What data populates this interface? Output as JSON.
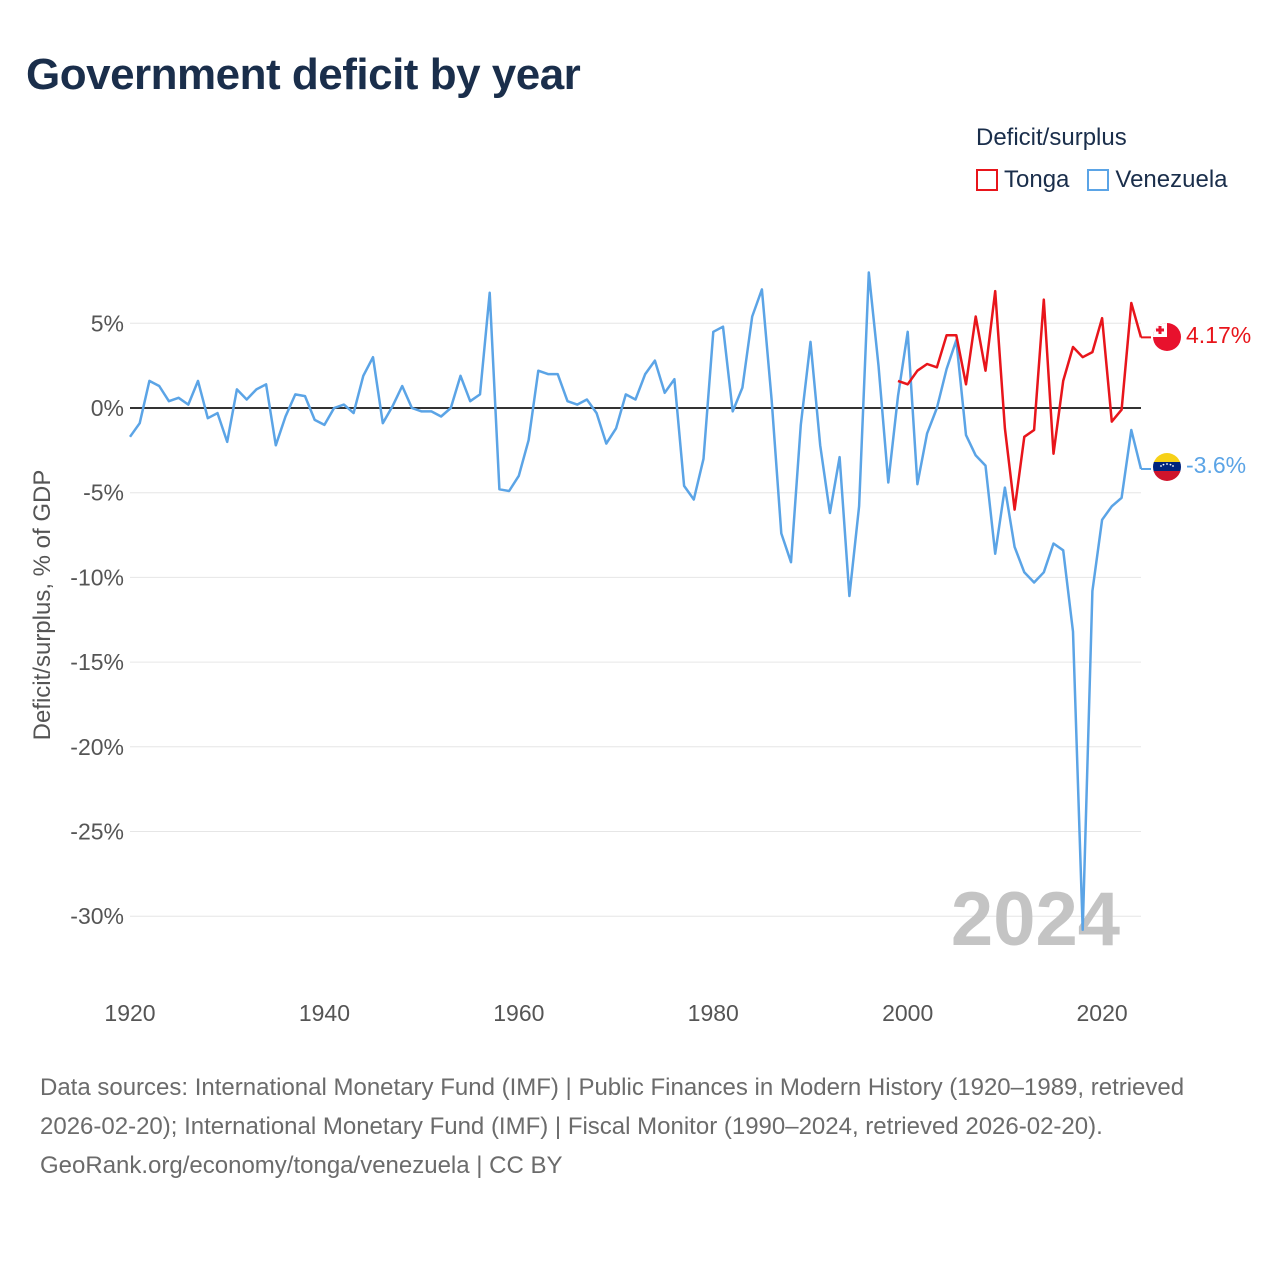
{
  "chart_data": {
    "type": "line",
    "title": "Government deficit by year",
    "ylabel": "Deficit/surplus, % of GDP",
    "xlabel": "",
    "legend_title": "Deficit/surplus",
    "legend_position": "top-right",
    "xlim": [
      1920,
      2024
    ],
    "ylim": [
      -34,
      9
    ],
    "y_ticks": [
      5,
      0,
      -5,
      -10,
      -15,
      -20,
      -25,
      -30
    ],
    "y_tick_labels": [
      "5%",
      "0%",
      "-5%",
      "-10%",
      "-15%",
      "-20%",
      "-25%",
      "-30%"
    ],
    "x_ticks": [
      1920,
      1940,
      1960,
      1980,
      2000,
      2020
    ],
    "x_tick_labels": [
      "1920",
      "1940",
      "1960",
      "1980",
      "2000",
      "2020"
    ],
    "year_watermark": "2024",
    "grid": true,
    "series": [
      {
        "name": "Tonga",
        "color": "#e8151b",
        "end_label": "4.17%",
        "x": [
          1999,
          2000,
          2001,
          2002,
          2003,
          2004,
          2005,
          2006,
          2007,
          2008,
          2009,
          2010,
          2011,
          2012,
          2013,
          2014,
          2015,
          2016,
          2017,
          2018,
          2019,
          2020,
          2021,
          2022,
          2023,
          2024
        ],
        "values": [
          1.6,
          1.4,
          2.2,
          2.6,
          2.4,
          4.3,
          4.3,
          1.4,
          5.4,
          2.2,
          6.9,
          -1.2,
          -6.0,
          -1.7,
          -1.3,
          6.4,
          -2.7,
          1.6,
          3.6,
          3.0,
          3.3,
          5.3,
          -0.8,
          -0.1,
          6.2,
          4.17
        ]
      },
      {
        "name": "Venezuela",
        "color": "#5ba4e6",
        "end_label": "-3.6%",
        "x": [
          1920,
          1921,
          1922,
          1923,
          1924,
          1925,
          1926,
          1927,
          1928,
          1929,
          1930,
          1931,
          1932,
          1933,
          1934,
          1935,
          1936,
          1937,
          1938,
          1939,
          1940,
          1941,
          1942,
          1943,
          1944,
          1945,
          1946,
          1947,
          1948,
          1949,
          1950,
          1951,
          1952,
          1953,
          1954,
          1955,
          1956,
          1957,
          1958,
          1959,
          1960,
          1961,
          1962,
          1963,
          1964,
          1965,
          1966,
          1967,
          1968,
          1969,
          1970,
          1971,
          1972,
          1973,
          1974,
          1975,
          1976,
          1977,
          1978,
          1979,
          1980,
          1981,
          1982,
          1983,
          1984,
          1985,
          1986,
          1987,
          1988,
          1989,
          1990,
          1991,
          1992,
          1993,
          1994,
          1995,
          1996,
          1997,
          1998,
          1999,
          2000,
          2001,
          2002,
          2003,
          2004,
          2005,
          2006,
          2007,
          2008,
          2009,
          2010,
          2011,
          2012,
          2013,
          2014,
          2015,
          2016,
          2017,
          2018,
          2019,
          2020,
          2021,
          2022,
          2023,
          2024
        ],
        "values": [
          -1.7,
          -0.9,
          1.6,
          1.3,
          0.4,
          0.6,
          0.2,
          1.6,
          -0.6,
          -0.3,
          -2.0,
          1.1,
          0.5,
          1.1,
          1.4,
          -2.2,
          -0.5,
          0.8,
          0.7,
          -0.7,
          -1.0,
          0.0,
          0.2,
          -0.3,
          1.9,
          3.0,
          -0.9,
          0.1,
          1.3,
          0.0,
          -0.2,
          -0.2,
          -0.5,
          0.0,
          1.9,
          0.4,
          0.8,
          6.8,
          -4.8,
          -4.9,
          -4.0,
          -1.9,
          2.2,
          2.0,
          2.0,
          0.4,
          0.2,
          0.5,
          -0.3,
          -2.1,
          -1.2,
          0.8,
          0.5,
          2.0,
          2.8,
          0.9,
          1.7,
          -4.6,
          -5.4,
          -3.0,
          4.5,
          4.8,
          -0.2,
          1.2,
          5.4,
          7.0,
          0.5,
          -7.4,
          -9.1,
          -1.0,
          3.9,
          -2.2,
          -6.2,
          -2.9,
          -11.1,
          -5.8,
          8.0,
          2.5,
          -4.4,
          0.7,
          4.5,
          -4.5,
          -1.5,
          0.0,
          2.3,
          4.0,
          -1.6,
          -2.8,
          -3.4,
          -8.6,
          -4.7,
          -8.2,
          -9.7,
          -10.3,
          -9.7,
          -8.0,
          -8.4,
          -13.2,
          -30.8,
          -10.8,
          -6.6,
          -5.8,
          -5.3,
          -1.3,
          -3.6
        ]
      }
    ]
  },
  "footer": {
    "sources": "Data sources: International Monetary Fund (IMF) | Public Finances in Modern History (1920–1989, retrieved 2026-02-20); International Monetary Fund (IMF) | Fiscal Monitor (1990–2024, retrieved 2026-02-20).",
    "credit": "GeoRank.org/economy/tonga/venezuela | CC BY"
  },
  "icons": {
    "tonga_flag": "tonga-flag-icon",
    "venezuela_flag": "venezuela-flag-icon"
  }
}
